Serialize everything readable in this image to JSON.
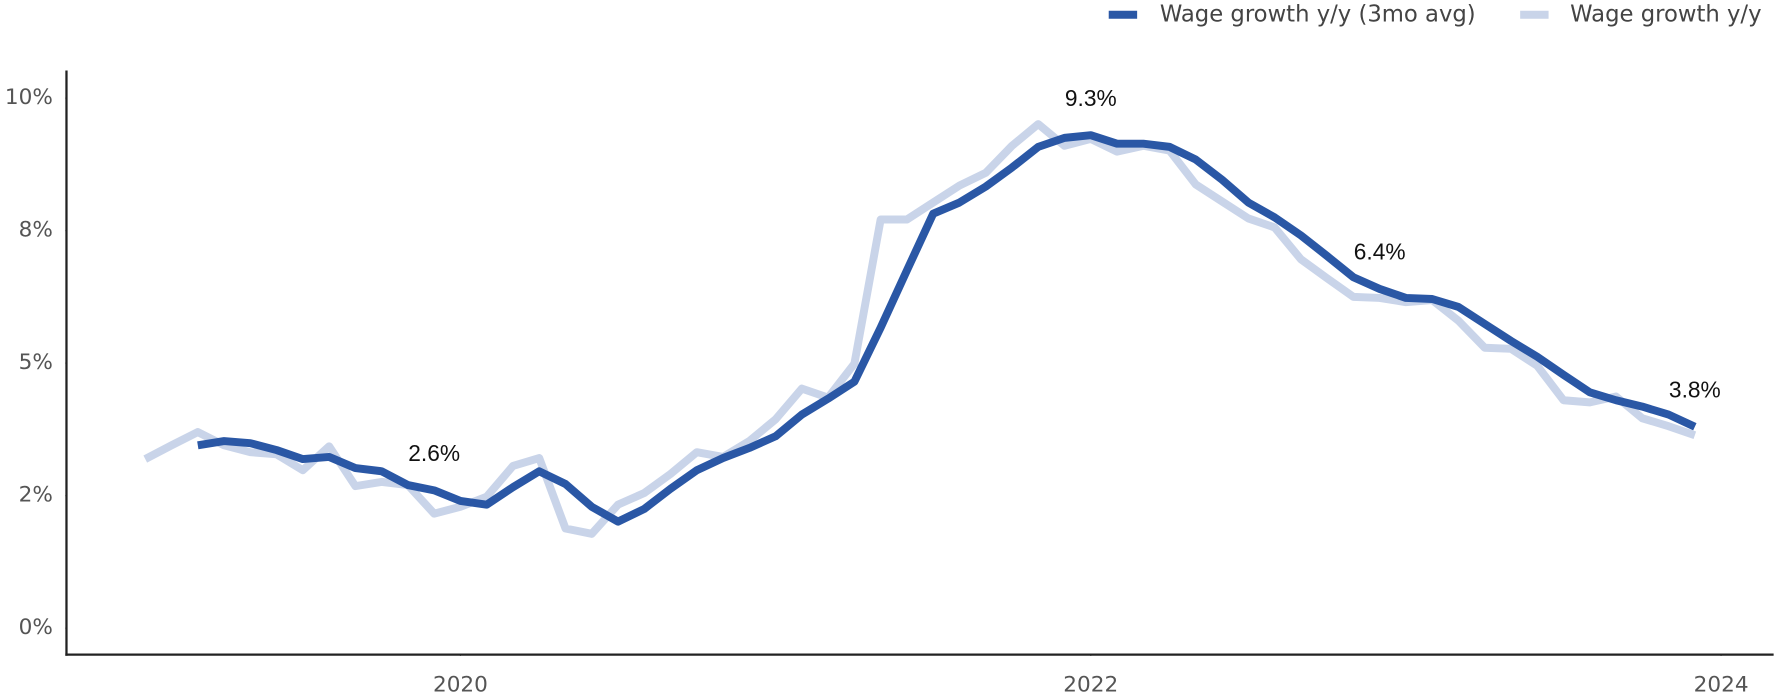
{
  "chart_data": {
    "type": "line",
    "x": [
      "2019-01",
      "2019-02",
      "2019-03",
      "2019-04",
      "2019-05",
      "2019-06",
      "2019-07",
      "2019-08",
      "2019-09",
      "2019-10",
      "2019-11",
      "2019-12",
      "2020-01",
      "2020-02",
      "2020-03",
      "2020-04",
      "2020-05",
      "2020-06",
      "2020-07",
      "2020-08",
      "2020-09",
      "2020-10",
      "2020-11",
      "2020-12",
      "2021-01",
      "2021-02",
      "2021-03",
      "2021-04",
      "2021-05",
      "2021-06",
      "2021-07",
      "2021-08",
      "2021-09",
      "2021-10",
      "2021-11",
      "2021-12",
      "2022-01",
      "2022-02",
      "2022-03",
      "2022-04",
      "2022-05",
      "2022-06",
      "2022-07",
      "2022-08",
      "2022-09",
      "2022-10",
      "2022-11",
      "2022-12",
      "2023-01",
      "2023-02",
      "2023-03",
      "2023-04",
      "2023-05",
      "2023-06",
      "2023-07",
      "2023-08",
      "2023-09",
      "2023-10",
      "2023-11",
      "2023-12"
    ],
    "series": [
      {
        "name": "Wage growth y/y",
        "color": "#c9d4e9",
        "values": [
          3.19,
          3.45,
          3.7,
          3.45,
          3.32,
          3.28,
          2.98,
          3.43,
          2.68,
          2.76,
          2.7,
          2.16,
          2.29,
          2.48,
          3.06,
          3.21,
          1.88,
          1.78,
          2.33,
          2.55,
          2.91,
          3.32,
          3.23,
          3.53,
          3.94,
          4.52,
          4.35,
          4.99,
          7.71,
          7.71,
          8.03,
          8.35,
          8.59,
          9.1,
          9.51,
          9.1,
          9.23,
          8.99,
          9.1,
          9.01,
          8.37,
          8.05,
          7.73,
          7.56,
          6.96,
          6.6,
          6.25,
          6.23,
          6.15,
          6.19,
          5.8,
          5.29,
          5.27,
          4.95,
          4.3,
          4.26,
          4.37,
          3.96,
          3.81,
          3.64
        ]
      },
      {
        "name": "Wage growth y/y (3mo avg)",
        "color": "#2a57a5",
        "values": [
          null,
          null,
          3.45,
          3.53,
          3.49,
          3.36,
          3.19,
          3.23,
          3.02,
          2.96,
          2.7,
          2.6,
          2.4,
          2.33,
          2.66,
          2.96,
          2.72,
          2.29,
          2.01,
          2.25,
          2.63,
          2.98,
          3.21,
          3.4,
          3.62,
          4.03,
          4.33,
          4.65,
          5.67,
          6.75,
          7.82,
          8.03,
          8.33,
          8.69,
          9.08,
          9.25,
          9.3,
          9.14,
          9.14,
          9.08,
          8.84,
          8.46,
          8.03,
          7.75,
          7.41,
          7.02,
          6.62,
          6.4,
          6.23,
          6.21,
          6.06,
          5.74,
          5.42,
          5.12,
          4.78,
          4.45,
          4.3,
          4.18,
          4.03,
          3.8
        ],
        "value_labels": [
          null,
          null,
          null,
          null,
          null,
          null,
          null,
          null,
          null,
          null,
          null,
          "2.6%",
          null,
          null,
          null,
          null,
          null,
          null,
          null,
          null,
          null,
          null,
          null,
          null,
          null,
          null,
          null,
          null,
          null,
          null,
          null,
          null,
          null,
          null,
          null,
          null,
          "9.3%",
          null,
          null,
          null,
          null,
          null,
          null,
          null,
          null,
          null,
          null,
          "6.4%",
          null,
          null,
          null,
          null,
          null,
          null,
          null,
          null,
          null,
          null,
          null,
          "3.8%"
        ]
      }
    ],
    "xlim": [
      "2018-10",
      "2024-03"
    ],
    "xticks": [
      {
        "value": "2020-01",
        "label": "2020"
      },
      {
        "value": "2022-01",
        "label": "2022"
      },
      {
        "value": "2024-01",
        "label": "2024"
      }
    ],
    "ylim": [
      -0.5,
      10.5
    ],
    "yticks": [
      {
        "value": 0,
        "label": "0%"
      },
      {
        "value": 2.5,
        "label": "2%"
      },
      {
        "value": 5,
        "label": "5%"
      },
      {
        "value": 7.5,
        "label": "8%"
      },
      {
        "value": 10,
        "label": "10%"
      }
    ],
    "grid": false,
    "legend": "top-right"
  }
}
